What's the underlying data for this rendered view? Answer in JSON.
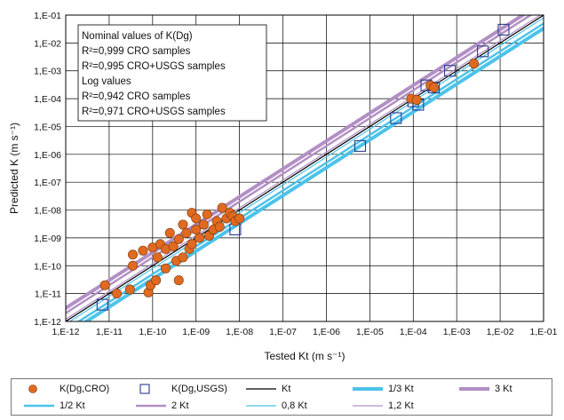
{
  "chart_data": {
    "type": "scatter",
    "xlabel": "Tested Kt (m s⁻¹)",
    "ylabel": "Predicted K (m s⁻¹)",
    "x_scale": "log",
    "y_scale": "log",
    "xlim": [
      1e-12,
      0.1
    ],
    "ylim": [
      1e-12,
      0.1
    ],
    "grid": true,
    "x_ticks": [
      "1,E-12",
      "1,E-11",
      "1,E-10",
      "1,E-09",
      "1,E-08",
      "1,E-07",
      "1,E-06",
      "1,E-05",
      "1,E-04",
      "1,E-03",
      "1,E-02",
      "1,E-01"
    ],
    "y_ticks": [
      "1,E-12",
      "1,E-11",
      "1,E-10",
      "1,E-09",
      "1,E-08",
      "1,E-07",
      "1,E-06",
      "1,E-05",
      "1,E-04",
      "1,E-03",
      "1,E-02",
      "1,E-01"
    ],
    "annotation": [
      "Nominal values of K(Dg)",
      "R²=0,999 CRO samples",
      "R²=0,995 CRO+USGS samples",
      "Log values",
      "R²=0,942 CRO samples",
      "R²=0,971 CRO+USGS samples"
    ],
    "series": [
      {
        "name": "K(Dg,CRO)",
        "marker": "circle",
        "color": "#e06a20",
        "points": [
          [
            8e-12,
            2e-11
          ],
          [
            1.5e-11,
            1e-11
          ],
          [
            3e-11,
            1.4e-11
          ],
          [
            8e-11,
            1.1e-11
          ],
          [
            3.5e-11,
            1e-10
          ],
          [
            3.5e-11,
            2.5e-10
          ],
          [
            6e-11,
            3.5e-10
          ],
          [
            9e-11,
            2e-11
          ],
          [
            1.2e-10,
            3e-11
          ],
          [
            1e-10,
            4.5e-10
          ],
          [
            1.3e-10,
            2e-10
          ],
          [
            1.5e-10,
            6e-10
          ],
          [
            2e-10,
            4e-10
          ],
          [
            2e-10,
            8e-11
          ],
          [
            2.5e-10,
            1.5e-09
          ],
          [
            3e-10,
            5e-10
          ],
          [
            3.5e-10,
            1.5e-10
          ],
          [
            4e-10,
            3e-11
          ],
          [
            4e-10,
            9e-10
          ],
          [
            5e-10,
            2e-10
          ],
          [
            5e-10,
            3e-09
          ],
          [
            6e-10,
            1.5e-09
          ],
          [
            7e-10,
            4e-10
          ],
          [
            8e-10,
            6e-10
          ],
          [
            8e-10,
            8e-09
          ],
          [
            1e-09,
            2e-09
          ],
          [
            1e-09,
            5e-09
          ],
          [
            1.2e-09,
            1e-09
          ],
          [
            1.5e-09,
            3e-09
          ],
          [
            1.8e-09,
            7e-09
          ],
          [
            2e-09,
            1.2e-09
          ],
          [
            2.5e-09,
            2e-09
          ],
          [
            3e-09,
            4e-09
          ],
          [
            3.5e-09,
            2.5e-09
          ],
          [
            4e-09,
            1.2e-08
          ],
          [
            5e-09,
            5e-09
          ],
          [
            6e-09,
            8e-09
          ],
          [
            7e-09,
            6e-09
          ],
          [
            8e-09,
            4e-09
          ],
          [
            1e-08,
            5e-09
          ],
          [
            9e-05,
            0.0001
          ],
          [
            0.00012,
            9e-05
          ],
          [
            0.00025,
            0.0003
          ],
          [
            0.0003,
            0.00025
          ],
          [
            0.0025,
            0.0018
          ]
        ]
      },
      {
        "name": "K(Dg,USGS)",
        "marker": "square-open",
        "color": "#2a3a8f",
        "points": [
          [
            7e-12,
            4e-12
          ],
          [
            8e-09,
            2e-09
          ],
          [
            6e-06,
            2e-06
          ],
          [
            4e-05,
            2e-05
          ],
          [
            0.0001,
            8e-05
          ],
          [
            0.00013,
            6e-05
          ],
          [
            0.0002,
            0.0003
          ],
          [
            0.0003,
            0.00025
          ],
          [
            0.0007,
            0.001
          ],
          [
            0.004,
            0.005
          ],
          [
            0.012,
            0.03
          ]
        ]
      },
      {
        "name": "Kt",
        "factor": 1,
        "color": "#000000",
        "width": 1.2
      },
      {
        "name": "1/3 Kt",
        "factor": 0.3333,
        "color": "#4cc3ea",
        "width": 4
      },
      {
        "name": "3 Kt",
        "factor": 3,
        "color": "#b28fc4",
        "width": 4
      },
      {
        "name": "1/2 Kt",
        "factor": 0.5,
        "color": "#4cc3ea",
        "width": 2.5
      },
      {
        "name": "2 Kt",
        "factor": 2,
        "color": "#b28fc4",
        "width": 2.5
      },
      {
        "name": "0,8 Kt",
        "factor": 0.8,
        "color": "#4cc3ea",
        "width": 1.2
      },
      {
        "name": "1,2 Kt",
        "factor": 1.2,
        "color": "#b28fc4",
        "width": 1.2
      }
    ],
    "legend_position": "bottom"
  },
  "legend": {
    "items": [
      {
        "label": "K(Dg,CRO)",
        "kind": "circle",
        "color": "#e06a20"
      },
      {
        "label": "K(Dg,USGS)",
        "kind": "square",
        "color": "#2a3a8f"
      },
      {
        "label": "Kt",
        "kind": "line",
        "color": "#000000",
        "width": 1.2
      },
      {
        "label": "1/3 Kt",
        "kind": "line",
        "color": "#4cc3ea",
        "width": 4
      },
      {
        "label": "3 Kt",
        "kind": "line",
        "color": "#b28fc4",
        "width": 4
      },
      {
        "label": "1/2 Kt",
        "kind": "line",
        "color": "#4cc3ea",
        "width": 2.5
      },
      {
        "label": "2 Kt",
        "kind": "line",
        "color": "#b28fc4",
        "width": 2.5
      },
      {
        "label": "0,8 Kt",
        "kind": "line",
        "color": "#4cc3ea",
        "width": 1.2
      },
      {
        "label": "1,2 Kt",
        "kind": "line",
        "color": "#b28fc4",
        "width": 1.2
      }
    ]
  }
}
